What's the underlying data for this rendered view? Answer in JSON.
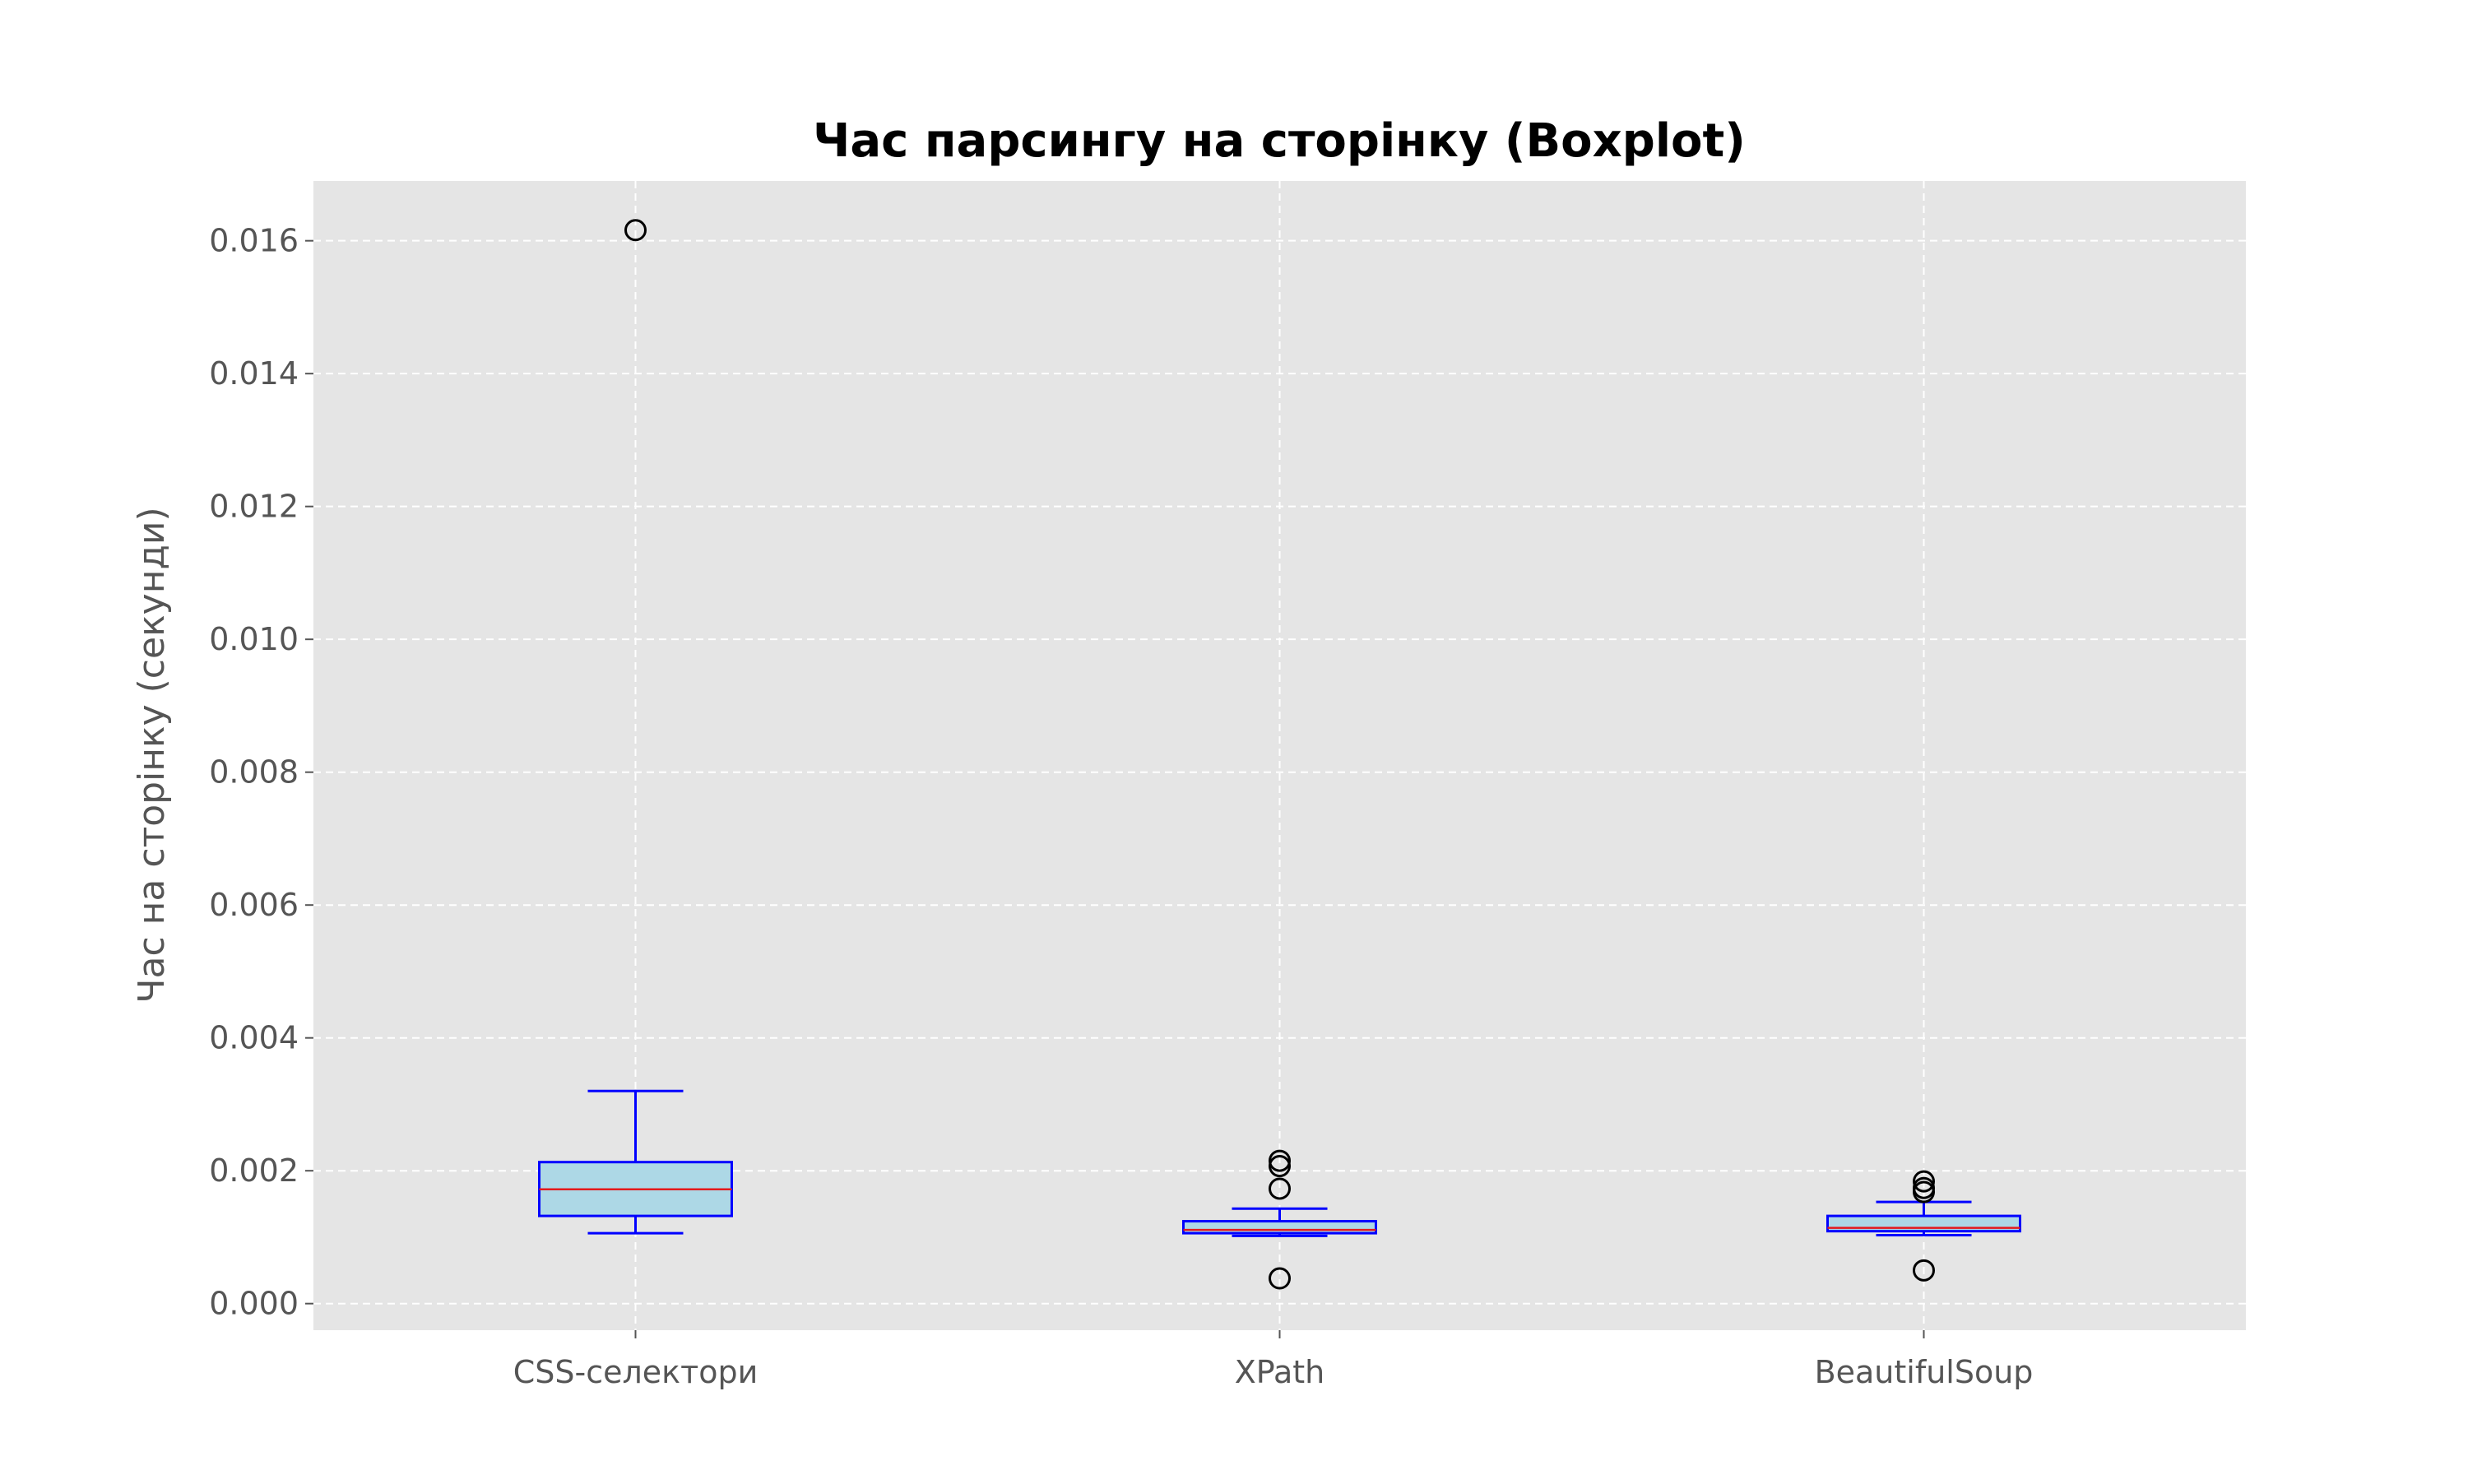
{
  "chart_data": {
    "type": "boxplot",
    "title": "Час парсингу на сторінку (Boxplot)",
    "xlabel": "",
    "ylabel": "Час на сторінку (секунди)",
    "categories": [
      "CSS-селектори",
      "XPath",
      "BeautifulSoup"
    ],
    "ylim": [
      -0.0004,
      0.0169
    ],
    "yticks": [
      0.0,
      0.002,
      0.004,
      0.006,
      0.008,
      0.01,
      0.012,
      0.014,
      0.016
    ],
    "ytick_labels": [
      "0.000",
      "0.002",
      "0.004",
      "0.006",
      "0.008",
      "0.010",
      "0.012",
      "0.014",
      "0.016"
    ],
    "grid": true,
    "boxes": [
      {
        "category": "CSS-селектори",
        "whisker_low": 0.00106,
        "q1": 0.00132,
        "median": 0.00172,
        "q3": 0.00213,
        "whisker_high": 0.0032,
        "outliers": [
          0.01616
        ]
      },
      {
        "category": "XPath",
        "whisker_low": 0.00102,
        "q1": 0.00106,
        "median": 0.00111,
        "q3": 0.00124,
        "whisker_high": 0.00143,
        "outliers": [
          0.00215,
          0.00207,
          0.00173,
          0.00038
        ]
      },
      {
        "category": "BeautifulSoup",
        "whisker_low": 0.00103,
        "q1": 0.00109,
        "median": 0.00114,
        "q3": 0.00132,
        "whisker_high": 0.00153,
        "outliers": [
          0.00184,
          0.00174,
          0.00168,
          0.0005
        ]
      }
    ],
    "colors": {
      "plot_background": "#e5e5e5",
      "box_fill": "#add8e6",
      "box_edge": "#0000ff",
      "median": "#e41a1c",
      "outlier_edge": "#000000",
      "grid": "#ffffff"
    }
  }
}
